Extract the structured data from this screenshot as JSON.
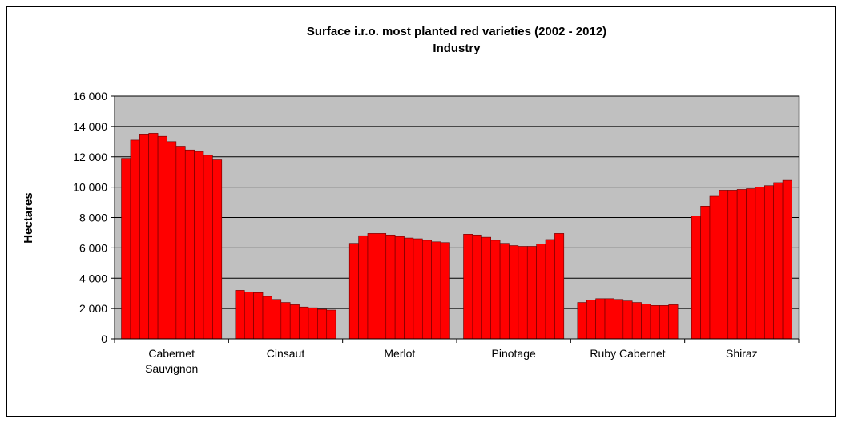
{
  "chart_data": {
    "type": "bar",
    "title": "Surface i.r.o. most planted red varieties  (2002 - 2012)",
    "subtitle": "Industry",
    "y_label": "Hectares",
    "categories": [
      "Cabernet Sauvignon",
      "Cinsaut",
      "Merlot",
      "Pinotage",
      "Ruby Cabernet",
      "Shiraz"
    ],
    "series": [
      {
        "color": "#ff0000",
        "values": [
          11900,
          3200,
          6300,
          6900,
          2400,
          8100
        ]
      },
      {
        "color": "#ff0000",
        "values": [
          13100,
          3100,
          6800,
          6850,
          2550,
          8750
        ]
      },
      {
        "color": "#ff0000",
        "values": [
          13500,
          3050,
          6950,
          6700,
          2650,
          9400
        ]
      },
      {
        "color": "#ff0000",
        "values": [
          13550,
          2800,
          6950,
          6500,
          2650,
          9800
        ]
      },
      {
        "color": "#ff0000",
        "values": [
          13350,
          2600,
          6850,
          6300,
          2600,
          9800
        ]
      },
      {
        "color": "#ff0000",
        "values": [
          13000,
          2400,
          6750,
          6150,
          2500,
          9850
        ]
      },
      {
        "color": "#ff0000",
        "values": [
          12700,
          2250,
          6650,
          6100,
          2400,
          9900
        ]
      },
      {
        "color": "#ff0000",
        "values": [
          12450,
          2100,
          6600,
          6100,
          2300,
          10000
        ]
      },
      {
        "color": "#ff0000",
        "values": [
          12350,
          2050,
          6500,
          6250,
          2200,
          10100
        ]
      },
      {
        "color": "#ff0000",
        "values": [
          12100,
          1950,
          6400,
          6550,
          2200,
          10300
        ]
      },
      {
        "color": "#ff0000",
        "values": [
          11800,
          1900,
          6350,
          6950,
          2250,
          10450
        ]
      }
    ],
    "ylim": [
      0,
      16000
    ],
    "yticks": [
      0,
      {
        "value": 2000,
        "label": "2 000"
      },
      {
        "value": 4000,
        "label": "4 000"
      },
      {
        "value": 6000,
        "label": "6 000"
      },
      {
        "value": 8000,
        "label": "8 000"
      },
      {
        "value": 10000,
        "label": "10 000"
      },
      {
        "value": 12000,
        "label": "12 000"
      },
      {
        "value": 14000,
        "label": "14 000"
      },
      {
        "value": 16000,
        "label": "16 000"
      }
    ],
    "grid": true,
    "plot_background": "#c0c0c0"
  }
}
